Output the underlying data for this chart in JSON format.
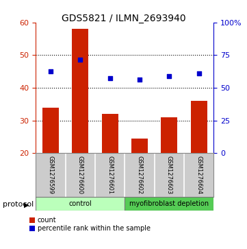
{
  "title": "GDS5821 / ILMN_2693940",
  "samples": [
    "GSM1276599",
    "GSM1276600",
    "GSM1276601",
    "GSM1276602",
    "GSM1276603",
    "GSM1276604"
  ],
  "bar_values": [
    34,
    58,
    32,
    24.5,
    31,
    36
  ],
  "scatter_values": [
    45.0,
    48.5,
    43.0,
    42.5,
    43.5,
    44.5
  ],
  "ylim_left": [
    20,
    60
  ],
  "yticks_left": [
    20,
    30,
    40,
    50,
    60
  ],
  "bar_color": "#cc2200",
  "scatter_color": "#0000cc",
  "protocol_groups": [
    {
      "label": "control",
      "start": 0,
      "end": 3,
      "color": "#bbffbb"
    },
    {
      "label": "myofibroblast depletion",
      "start": 3,
      "end": 6,
      "color": "#55cc55"
    }
  ],
  "protocol_label": "protocol",
  "legend_bar_label": "count",
  "legend_scatter_label": "percentile rank within the sample",
  "bar_width": 0.55,
  "background_color": "#ffffff",
  "sample_box_color": "#cccccc",
  "left_tick_color": "#cc2200",
  "right_tick_color": "#0000cc",
  "title_fontsize": 10,
  "tick_labelsize": 8,
  "sample_fontsize": 6
}
